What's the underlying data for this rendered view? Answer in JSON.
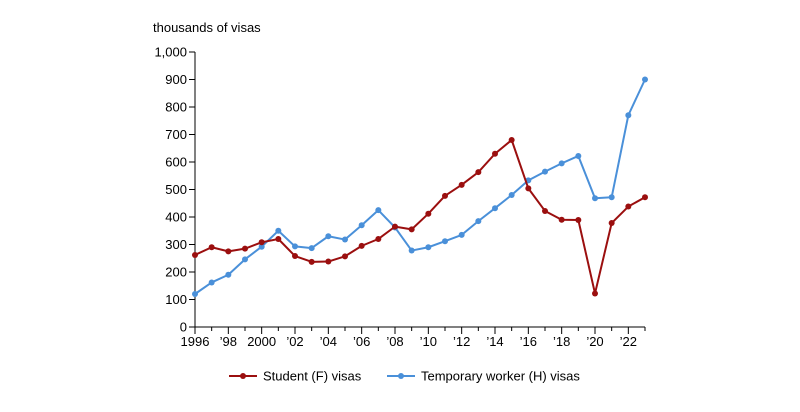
{
  "chart_data": {
    "type": "line",
    "title": "",
    "ylabel": "thousands of visas",
    "xlabel": "",
    "ylim": [
      0,
      1000
    ],
    "xlim": [
      1996,
      2023
    ],
    "yticks": [
      0,
      100,
      200,
      300,
      400,
      500,
      600,
      700,
      800,
      900,
      1000
    ],
    "ytick_labels": [
      "0",
      "100",
      "200",
      "300",
      "400",
      "500",
      "600",
      "700",
      "800",
      "900",
      "1,000"
    ],
    "xticks": [
      1996,
      1998,
      2000,
      2002,
      2004,
      2006,
      2008,
      2010,
      2012,
      2014,
      2016,
      2018,
      2020,
      2022
    ],
    "xtick_labels": [
      "1996",
      "’98",
      "2000",
      "’02",
      "’04",
      "’06",
      "’08",
      "’10",
      "’12",
      "’14",
      "’16",
      "’18",
      "’20",
      "’22"
    ],
    "grid": false,
    "legend_position": "bottom",
    "x": [
      1996,
      1997,
      1998,
      1999,
      2000,
      2001,
      2002,
      2003,
      2004,
      2005,
      2006,
      2007,
      2008,
      2009,
      2010,
      2011,
      2012,
      2013,
      2014,
      2015,
      2016,
      2017,
      2018,
      2019,
      2020,
      2021,
      2022,
      2023
    ],
    "series": [
      {
        "name": "Student (F) visas",
        "color": "#9b0f0f",
        "values": [
          262,
          290,
          275,
          285,
          308,
          320,
          258,
          237,
          238,
          257,
          295,
          320,
          365,
          355,
          412,
          477,
          517,
          563,
          630,
          680,
          504,
          422,
          390,
          389,
          122,
          378,
          438,
          472
        ]
      },
      {
        "name": "Temporary worker (H) visas",
        "color": "#4a90d9",
        "values": [
          120,
          162,
          190,
          246,
          292,
          350,
          293,
          287,
          330,
          318,
          370,
          425,
          362,
          278,
          290,
          312,
          335,
          385,
          432,
          480,
          533,
          565,
          595,
          622,
          468,
          472,
          770,
          900
        ]
      }
    ]
  }
}
